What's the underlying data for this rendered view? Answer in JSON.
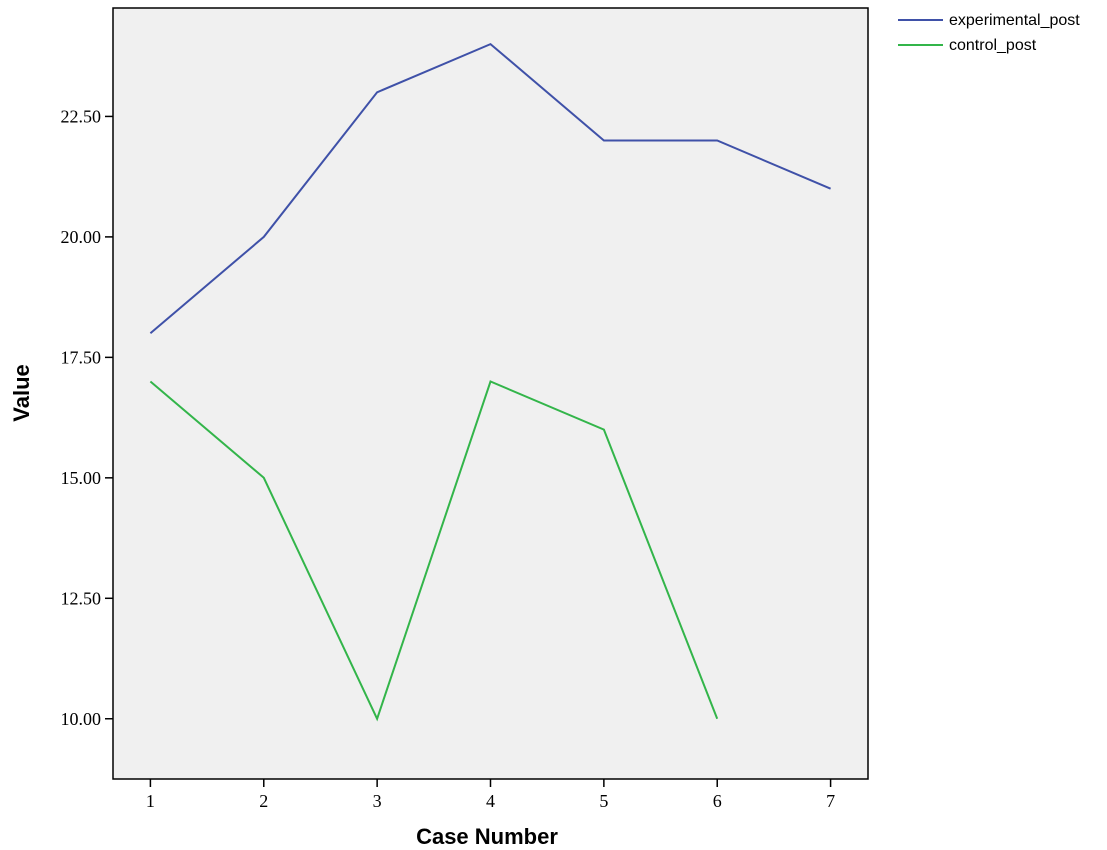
{
  "chart_data": {
    "type": "line",
    "title": "",
    "xlabel": "Case Number",
    "ylabel": "Value",
    "x": [
      1,
      2,
      3,
      4,
      5,
      6,
      7
    ],
    "x_tick_labels": [
      "1",
      "2",
      "3",
      "4",
      "5",
      "6",
      "7"
    ],
    "xlim": [
      0.67,
      7.33
    ],
    "ylim": [
      8.75,
      24.75
    ],
    "y_ticks": [
      10.0,
      12.5,
      15.0,
      17.5,
      20.0,
      22.5
    ],
    "y_tick_labels": [
      "10.00",
      "12.50",
      "15.00",
      "17.50",
      "20.00",
      "22.50"
    ],
    "grid": false,
    "plot_background": "#f0f0f0",
    "legend_position": "top-right, outside plot",
    "series": [
      {
        "name": "experimental_post",
        "color": "#3f51a8",
        "values": [
          18,
          20,
          23,
          24,
          22,
          22,
          21
        ]
      },
      {
        "name": "control_post",
        "color": "#33b54a",
        "values": [
          17,
          15,
          10,
          17,
          16,
          10,
          null
        ]
      }
    ]
  }
}
